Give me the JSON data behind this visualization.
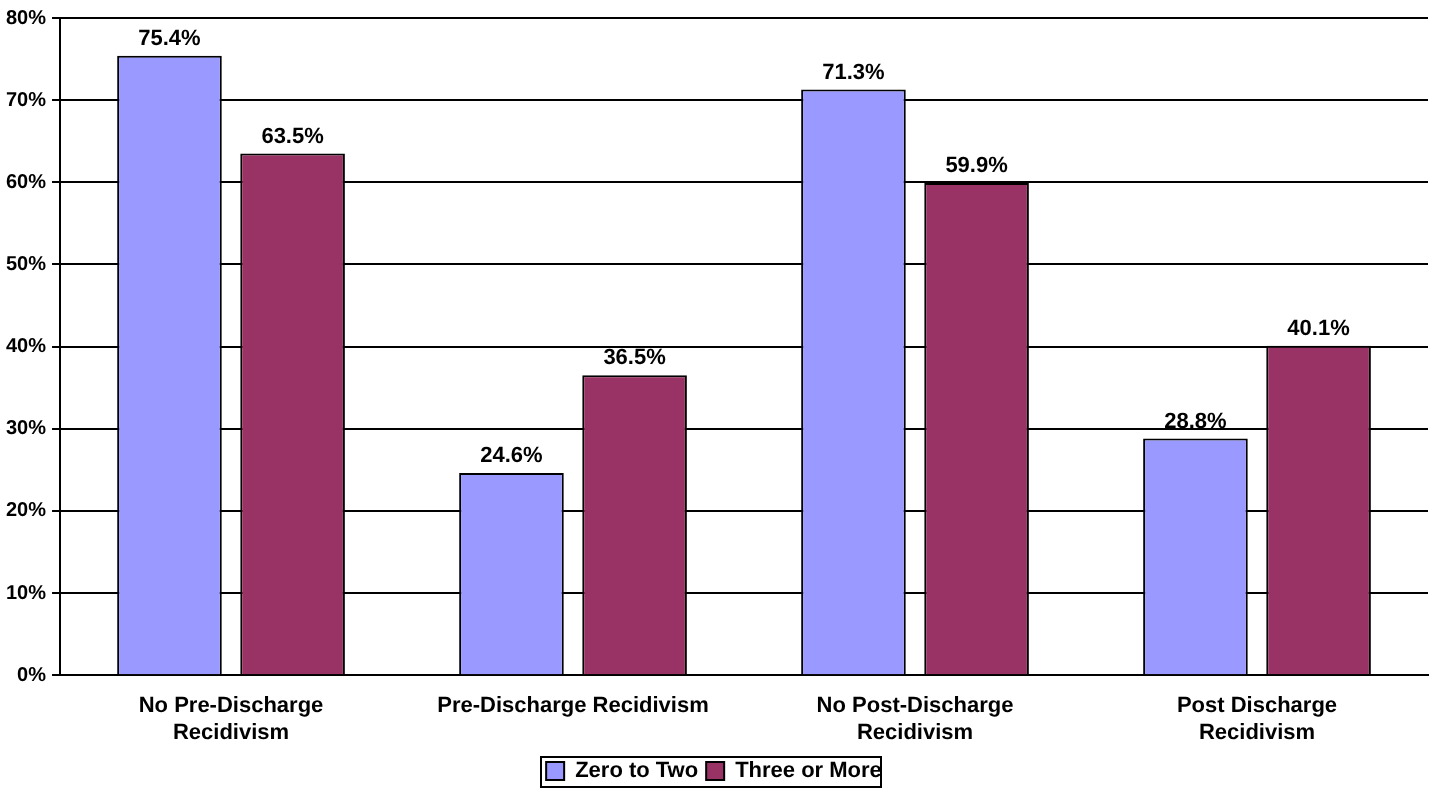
{
  "chart_data": {
    "type": "bar",
    "categories": [
      "No Pre-Discharge Recidivism",
      "Pre-Discharge Recidivism",
      "No Post-Discharge Recidivism",
      "Post Discharge Recidivism"
    ],
    "series": [
      {
        "name": "Zero to Two",
        "color": "#9999ff",
        "values": [
          75.4,
          24.6,
          71.3,
          28.8
        ],
        "value_labels": [
          "75.4%",
          "24.6%",
          "71.3%",
          "28.8%"
        ]
      },
      {
        "name": "Three or More",
        "color": "#993366",
        "values": [
          63.5,
          36.5,
          59.9,
          40.1
        ],
        "value_labels": [
          "63.5%",
          "36.5%",
          "59.9%",
          "40.1%"
        ]
      }
    ],
    "ylim": [
      0,
      80
    ],
    "yticks": [
      {
        "value": 0,
        "label": "0%"
      },
      {
        "value": 10,
        "label": "10%"
      },
      {
        "value": 20,
        "label": "20%"
      },
      {
        "value": 30,
        "label": "30%"
      },
      {
        "value": 40,
        "label": "40%"
      },
      {
        "value": 50,
        "label": "50%"
      },
      {
        "value": 60,
        "label": "60%"
      },
      {
        "value": 70,
        "label": "70%"
      },
      {
        "value": 80,
        "label": "80%"
      }
    ],
    "grid": "y",
    "legend": "bottom"
  }
}
